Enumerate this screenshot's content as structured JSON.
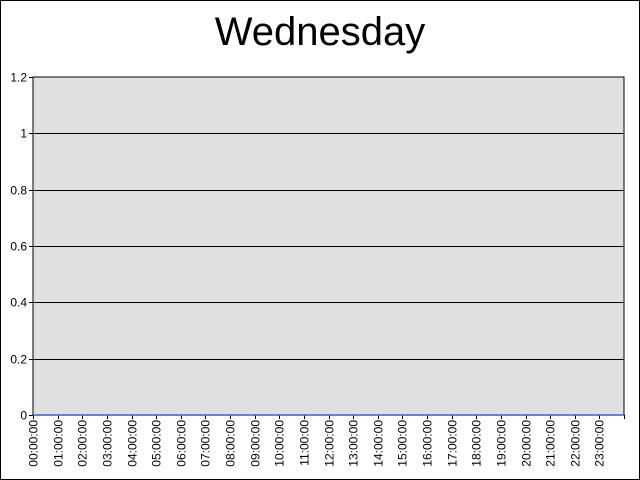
{
  "chart_data": {
    "type": "line",
    "title": "Wednesday",
    "x": [
      "00:00:00",
      "01:00:00",
      "02:00:00",
      "03:00:00",
      "04:00:00",
      "05:00:00",
      "06:00:00",
      "07:00:00",
      "08:00:00",
      "09:00:00",
      "10:00:00",
      "11:00:00",
      "12:00:00",
      "13:00:00",
      "14:00:00",
      "15:00:00",
      "16:00:00",
      "17:00:00",
      "18:00:00",
      "19:00:00",
      "20:00:00",
      "21:00:00",
      "22:00:00",
      "23:00:00"
    ],
    "series": [
      {
        "values": [
          0,
          0,
          0,
          0,
          0,
          0,
          0,
          0,
          0,
          0,
          0,
          0,
          0,
          0,
          0,
          0,
          0,
          0,
          0,
          0,
          0,
          0,
          0,
          0
        ]
      }
    ],
    "yticks": [
      0,
      0.2,
      0.4,
      0.6,
      0.8,
      1,
      1.2
    ],
    "ylim": [
      0,
      1.2
    ],
    "grid": true,
    "colors": {
      "plot_background": "#e0e0e0",
      "series_line": "#3b5bdb",
      "grid": "#000000"
    }
  }
}
